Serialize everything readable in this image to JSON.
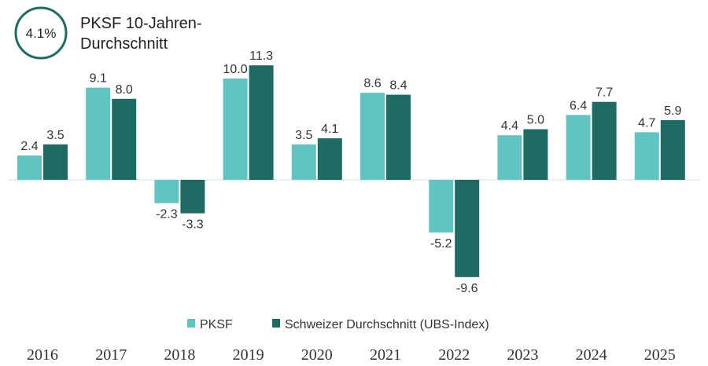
{
  "header": {
    "badge_value": "4.1%",
    "title_line1": "PKSF 10-Jahren-",
    "title_line2": "Durchschnitt"
  },
  "colors": {
    "pksf": "#62c3c3",
    "ubs": "#1e6b63",
    "badge_ring": "#1e6b63",
    "baseline": "#cfe3e3"
  },
  "chart_data": {
    "type": "bar",
    "categories": [
      "2016",
      "2017",
      "2018",
      "2019",
      "2020",
      "2021",
      "2022",
      "2023",
      "2024",
      "2025"
    ],
    "series": [
      {
        "name": "PKSF",
        "values": [
          2.4,
          9.1,
          -2.3,
          10.0,
          3.5,
          8.6,
          -5.2,
          4.4,
          6.4,
          4.7
        ],
        "labels": [
          "2.4",
          "9.1",
          "-2.3",
          "10.0",
          "3.5",
          "8.6",
          "-5.2",
          "4.4",
          "6.4",
          "4.7"
        ]
      },
      {
        "name": "Schweizer Durchschnitt (UBS-Index)",
        "values": [
          3.5,
          8.0,
          -3.3,
          11.3,
          4.1,
          8.4,
          -9.6,
          5.0,
          7.7,
          5.9
        ],
        "labels": [
          "3.5",
          "8.0",
          "-3.3",
          "11.3",
          "4.1",
          "8.4",
          "-9.6",
          "5.0",
          "7.7",
          "5.9"
        ]
      }
    ],
    "title": "",
    "xlabel": "",
    "ylabel": "",
    "ylim": [
      -9.6,
      11.3
    ],
    "grid": false,
    "legend": "bottom-center"
  }
}
